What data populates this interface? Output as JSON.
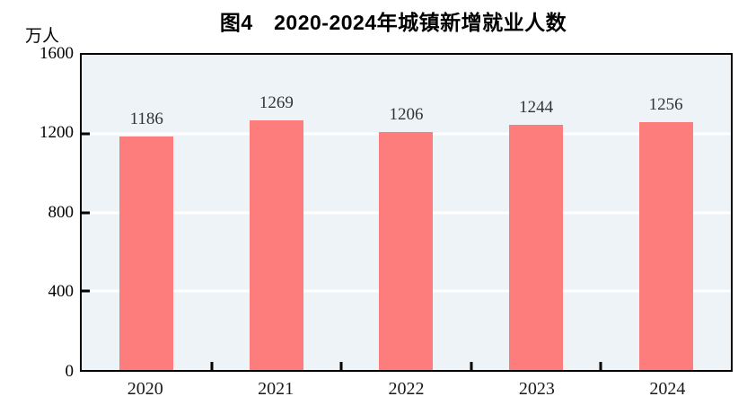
{
  "chart_data": {
    "type": "bar",
    "title": "图4　2020-2024年城镇新增就业人数",
    "unit_label": "万人",
    "categories": [
      "2020",
      "2021",
      "2022",
      "2023",
      "2024"
    ],
    "values": [
      1186,
      1269,
      1206,
      1244,
      1256
    ],
    "xlabel": "",
    "ylabel": "万人",
    "ylim": [
      0,
      1600
    ],
    "yticks": [
      0,
      400,
      800,
      1200,
      1600
    ],
    "grid": true,
    "gridline_color": "#FFFFFF",
    "bar_color": "#FD7D7D",
    "plot_bg_color": "#EDF3F7",
    "axis_color": "#000000",
    "label_color": "#333333",
    "legend_position": "none"
  }
}
